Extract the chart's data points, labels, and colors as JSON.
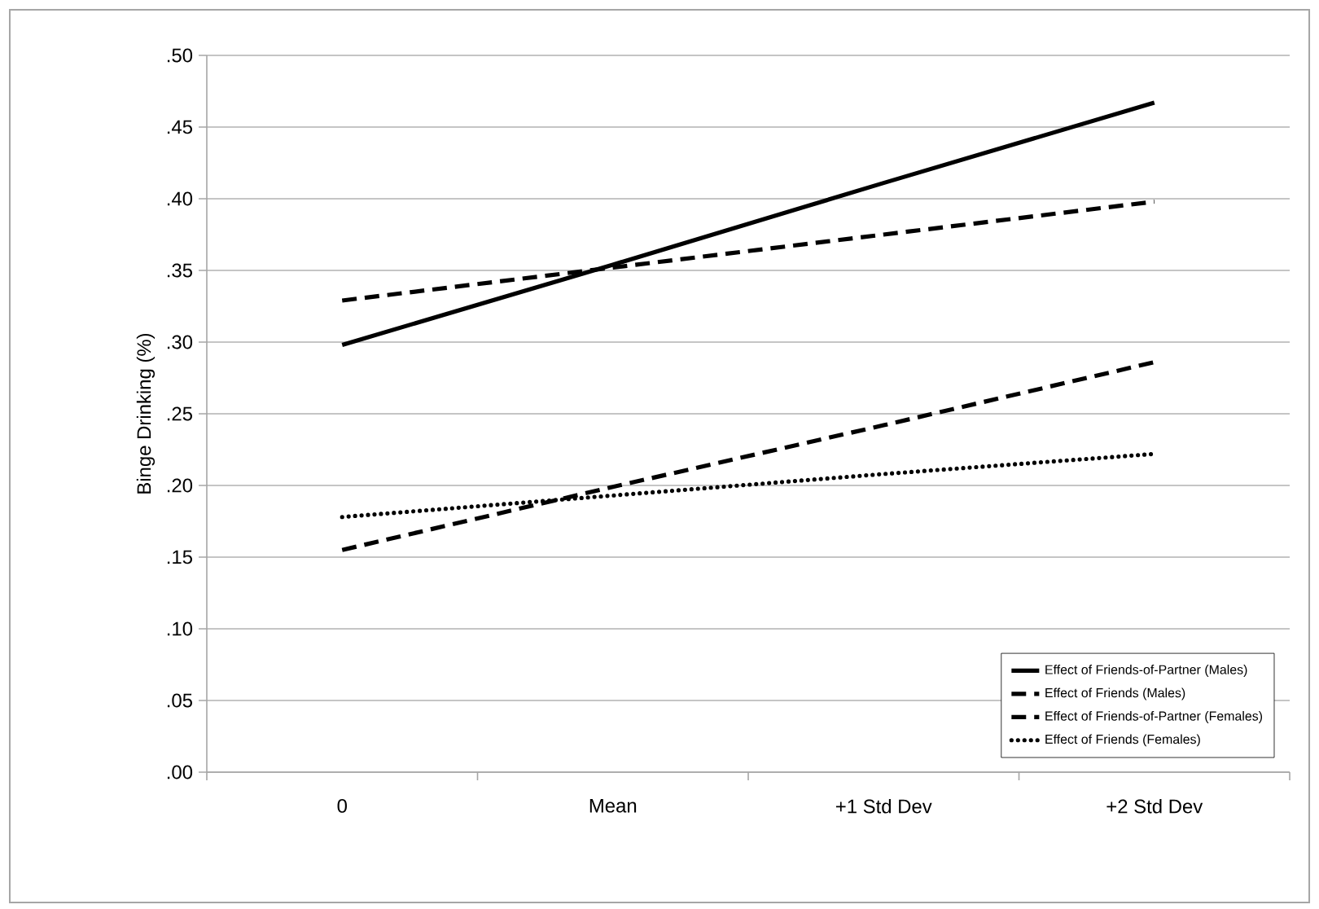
{
  "chart_data": {
    "type": "line",
    "ylabel": "Binge Drinking (%)",
    "categories": [
      "0",
      "Mean",
      "+1 Std Dev",
      "+2 Std Dev"
    ],
    "series": [
      {
        "name": "Effect of Friends-of-Partner  (Males)",
        "color": "#000000",
        "line_style": "solid",
        "values": [
          0.298,
          0.354,
          0.411,
          0.467
        ]
      },
      {
        "name": "Effect of Friends (Males)",
        "color": "#000000",
        "line_style": "dashed",
        "values": [
          0.329,
          0.352,
          0.375,
          0.398
        ]
      },
      {
        "name": "Effect of Friends-of-Partner  (Females)",
        "color": "#000000",
        "line_style": "dashed",
        "values": [
          0.155,
          0.199,
          0.242,
          0.286
        ]
      },
      {
        "name": "Effect of Friends (Females)",
        "color": "#000000",
        "line_style": "dotted",
        "values": [
          0.178,
          0.193,
          0.208,
          0.222
        ]
      }
    ],
    "ylim": [
      0,
      0.5
    ],
    "yticks": [
      {
        "value": 0,
        "label": ".00"
      },
      {
        "value": 0.05,
        "label": ".05"
      },
      {
        "value": 0.1,
        "label": ".10"
      },
      {
        "value": 0.15,
        "label": ".15"
      },
      {
        "value": 0.2,
        "label": ".20"
      },
      {
        "value": 0.25,
        "label": ".25"
      },
      {
        "value": 0.3,
        "label": ".30"
      },
      {
        "value": 0.35,
        "label": ".35"
      },
      {
        "value": 0.4,
        "label": ".40"
      },
      {
        "value": 0.45,
        "label": ".45"
      },
      {
        "value": 0.5,
        "label": ".50"
      }
    ],
    "grid": "y",
    "legend": "bottom right",
    "marker": "none"
  }
}
